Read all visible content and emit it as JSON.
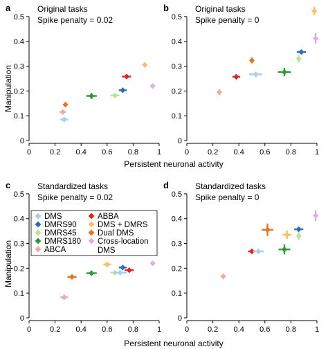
{
  "figure": {
    "xlabel": "Persistent neuronal activity",
    "ylabel": "Manipulation"
  },
  "legend": {
    "entries": [
      {
        "label": "DMS",
        "color": "#a9cfee"
      },
      {
        "label": "DMRS90",
        "color": "#2b6fb3"
      },
      {
        "label": "DMRS45",
        "color": "#b8e39a"
      },
      {
        "label": "DMRS180",
        "color": "#2f9a3c"
      },
      {
        "label": "ABCA",
        "color": "#f0a9a6"
      },
      {
        "label": "ABBA",
        "color": "#d62a25"
      },
      {
        "label": "DMS + DMRS",
        "color": "#fbbd6e"
      },
      {
        "label": "Dual DMS",
        "color": "#e37222"
      },
      {
        "label": "Cross-location\nDMS",
        "color": "#d9b3e6"
      }
    ]
  },
  "chart_data": [
    {
      "panel": "a",
      "type": "scatter",
      "title": "Original tasks",
      "subtitle": "Spike penalty = 0.02",
      "xlim": [
        0,
        1
      ],
      "ylim": [
        0,
        0.55
      ],
      "xticks": [
        "0",
        "0.2",
        "0.4",
        "0.6",
        "0.8",
        "1"
      ],
      "yticks": [
        "0",
        "0.1",
        "0.2",
        "0.3",
        "0.4",
        "0.5"
      ],
      "points": [
        {
          "series": "DMS",
          "x": 0.27,
          "y": 0.085,
          "xerr": 0.03,
          "yerr": 0.005
        },
        {
          "series": "ABCA",
          "x": 0.26,
          "y": 0.115,
          "xerr": 0.025,
          "yerr": 0.005
        },
        {
          "series": "Dual DMS",
          "x": 0.28,
          "y": 0.145,
          "xerr": 0.0,
          "yerr": 0.004
        },
        {
          "series": "DMRS180",
          "x": 0.48,
          "y": 0.18,
          "xerr": 0.04,
          "yerr": 0.012
        },
        {
          "series": "DMRS45",
          "x": 0.66,
          "y": 0.182,
          "xerr": 0.035,
          "yerr": 0.005
        },
        {
          "series": "DMRS90",
          "x": 0.72,
          "y": 0.203,
          "xerr": 0.03,
          "yerr": 0.005
        },
        {
          "series": "ABBA",
          "x": 0.75,
          "y": 0.258,
          "xerr": 0.035,
          "yerr": 0.005
        },
        {
          "series": "DMS + DMRS",
          "x": 0.89,
          "y": 0.305,
          "xerr": 0.0,
          "yerr": 0.004
        },
        {
          "series": "Cross-location\nDMS",
          "x": 0.95,
          "y": 0.22,
          "xerr": 0.0,
          "yerr": 0.004
        }
      ]
    },
    {
      "panel": "b",
      "type": "scatter",
      "title": "Original tasks",
      "subtitle": "Spike penalty = 0",
      "xlim": [
        0,
        1
      ],
      "ylim": [
        0,
        0.55
      ],
      "xticks": [
        "0",
        "0.2",
        "0.4",
        "0.6",
        "0.8",
        "1"
      ],
      "yticks": [
        "0",
        "0.1",
        "0.2",
        "0.3",
        "0.4",
        "0.5"
      ],
      "points": [
        {
          "series": "ABCA",
          "x": 0.25,
          "y": 0.195,
          "xerr": 0.0,
          "yerr": 0.012
        },
        {
          "series": "ABBA",
          "x": 0.38,
          "y": 0.257,
          "xerr": 0.03,
          "yerr": 0.01
        },
        {
          "series": "Dual DMS",
          "x": 0.5,
          "y": 0.323,
          "xerr": 0.0,
          "yerr": 0.012
        },
        {
          "series": "DMS",
          "x": 0.53,
          "y": 0.267,
          "xerr": 0.05,
          "yerr": 0.01
        },
        {
          "series": "DMRS180",
          "x": 0.75,
          "y": 0.276,
          "xerr": 0.05,
          "yerr": 0.017
        },
        {
          "series": "DMRS45",
          "x": 0.86,
          "y": 0.33,
          "xerr": 0.0,
          "yerr": 0.015
        },
        {
          "series": "DMRS90",
          "x": 0.88,
          "y": 0.357,
          "xerr": 0.035,
          "yerr": 0.007
        },
        {
          "series": "DMS + DMRS",
          "x": 0.98,
          "y": 0.522,
          "xerr": 0.0,
          "yerr": 0.017
        },
        {
          "series": "Cross-location\nDMS",
          "x": 0.99,
          "y": 0.412,
          "xerr": 0.0,
          "yerr": 0.022
        }
      ]
    },
    {
      "panel": "c",
      "type": "scatter",
      "title": "Standardized tasks",
      "subtitle": "Spike penalty = 0.02",
      "xlim": [
        0,
        1
      ],
      "ylim": [
        0,
        0.55
      ],
      "xticks": [
        "0",
        "0.2",
        "0.4",
        "0.6",
        "0.8",
        "1"
      ],
      "yticks": [
        "0",
        "0.1",
        "0.2",
        "0.3",
        "0.4",
        "0.5"
      ],
      "points": [
        {
          "series": "ABCA",
          "x": 0.27,
          "y": 0.083,
          "xerr": 0.03,
          "yerr": 0.004
        },
        {
          "series": "Dual DMS",
          "x": 0.33,
          "y": 0.165,
          "xerr": 0.035,
          "yerr": 0.004
        },
        {
          "series": "DMRS180",
          "x": 0.48,
          "y": 0.18,
          "xerr": 0.04,
          "yerr": 0.01
        },
        {
          "series": "DMS + DMRS",
          "x": 0.6,
          "y": 0.215,
          "xerr": 0.03,
          "yerr": 0.005
        },
        {
          "series": "DMRS45",
          "x": 0.66,
          "y": 0.182,
          "xerr": 0.035,
          "yerr": 0.005
        },
        {
          "series": "DMS",
          "x": 0.7,
          "y": 0.182,
          "xerr": 0.05,
          "yerr": 0.005
        },
        {
          "series": "DMRS90",
          "x": 0.72,
          "y": 0.203,
          "xerr": 0.03,
          "yerr": 0.005
        },
        {
          "series": "ABBA",
          "x": 0.77,
          "y": 0.192,
          "xerr": 0.035,
          "yerr": 0.004
        },
        {
          "series": "Cross-location\nDMS",
          "x": 0.95,
          "y": 0.22,
          "xerr": 0.0,
          "yerr": 0.004
        }
      ]
    },
    {
      "panel": "d",
      "type": "scatter",
      "title": "Standardized tasks",
      "subtitle": "Spike penalty = 0",
      "xlim": [
        0,
        1
      ],
      "ylim": [
        0,
        0.55
      ],
      "xticks": [
        "0",
        "0.2",
        "0.4",
        "0.6",
        "0.8",
        "1"
      ],
      "yticks": [
        "0",
        "0.1",
        "0.2",
        "0.3",
        "0.4",
        "0.5"
      ],
      "points": [
        {
          "series": "ABCA",
          "x": 0.28,
          "y": 0.167,
          "xerr": 0.0,
          "yerr": 0.01
        },
        {
          "series": "ABBA",
          "x": 0.5,
          "y": 0.268,
          "xerr": 0.03,
          "yerr": 0.007
        },
        {
          "series": "DMS",
          "x": 0.55,
          "y": 0.268,
          "xerr": 0.04,
          "yerr": 0.007
        },
        {
          "series": "Dual DMS",
          "x": 0.62,
          "y": 0.355,
          "xerr": 0.045,
          "yerr": 0.025
        },
        {
          "series": "DMRS180",
          "x": 0.75,
          "y": 0.276,
          "xerr": 0.045,
          "yerr": 0.02
        },
        {
          "series": "DMS + DMRS",
          "x": 0.77,
          "y": 0.335,
          "xerr": 0.035,
          "yerr": 0.017
        },
        {
          "series": "DMRS90",
          "x": 0.86,
          "y": 0.357,
          "xerr": 0.035,
          "yerr": 0.007
        },
        {
          "series": "DMRS45",
          "x": 0.86,
          "y": 0.33,
          "xerr": 0.0,
          "yerr": 0.015
        },
        {
          "series": "Cross-location\nDMS",
          "x": 0.99,
          "y": 0.412,
          "xerr": 0.0,
          "yerr": 0.022
        }
      ]
    }
  ]
}
